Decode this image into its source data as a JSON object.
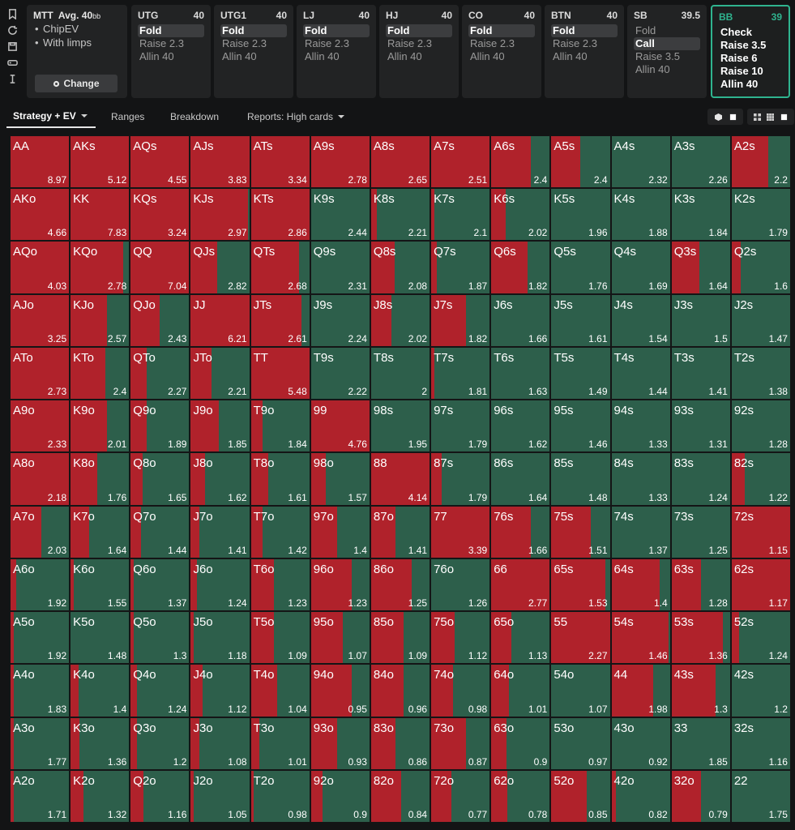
{
  "header": {
    "format": "MTT",
    "avg_label": "Avg. 40",
    "avg_unit": "bb",
    "options": [
      "ChipEV",
      "With limps"
    ],
    "change_label": "Change"
  },
  "positions": [
    {
      "name": "UTG",
      "stack": "40",
      "actions": [
        "Fold",
        "Raise 2.3",
        "Allin 40"
      ],
      "selected": 0
    },
    {
      "name": "UTG1",
      "stack": "40",
      "actions": [
        "Fold",
        "Raise 2.3",
        "Allin 40"
      ],
      "selected": 0
    },
    {
      "name": "LJ",
      "stack": "40",
      "actions": [
        "Fold",
        "Raise 2.3",
        "Allin 40"
      ],
      "selected": 0
    },
    {
      "name": "HJ",
      "stack": "40",
      "actions": [
        "Fold",
        "Raise 2.3",
        "Allin 40"
      ],
      "selected": 0
    },
    {
      "name": "CO",
      "stack": "40",
      "actions": [
        "Fold",
        "Raise 2.3",
        "Allin 40"
      ],
      "selected": 0
    },
    {
      "name": "BTN",
      "stack": "40",
      "actions": [
        "Fold",
        "Raise 2.3",
        "Allin 40"
      ],
      "selected": 0
    },
    {
      "name": "SB",
      "stack": "39.5",
      "actions": [
        "Fold",
        "Call",
        "Raise 3.5",
        "Allin 40"
      ],
      "selected": 1
    },
    {
      "name": "BB",
      "stack": "39",
      "actions": [
        "Check",
        "Raise 3.5",
        "Raise 6",
        "Raise 10",
        "Allin 40"
      ],
      "selected": -1,
      "active": true
    }
  ],
  "tabs": [
    {
      "label": "Strategy + EV",
      "active": true,
      "dropdown": true
    },
    {
      "label": "Ranges",
      "active": false,
      "dropdown": false
    },
    {
      "label": "Breakdown",
      "active": false,
      "dropdown": false
    },
    {
      "label": "Reports: High cards",
      "active": false,
      "dropdown": true
    }
  ],
  "colors": {
    "raise": "#b0222b",
    "check": "#2d5f4b",
    "accent": "#2fb48f"
  },
  "grid": {
    "hands": [
      [
        "AA",
        "AKs",
        "AQs",
        "AJs",
        "ATs",
        "A9s",
        "A8s",
        "A7s",
        "A6s",
        "A5s",
        "A4s",
        "A3s",
        "A2s"
      ],
      [
        "AKo",
        "KK",
        "KQs",
        "KJs",
        "KTs",
        "K9s",
        "K8s",
        "K7s",
        "K6s",
        "K5s",
        "K4s",
        "K3s",
        "K2s"
      ],
      [
        "AQo",
        "KQo",
        "QQ",
        "QJs",
        "QTs",
        "Q9s",
        "Q8s",
        "Q7s",
        "Q6s",
        "Q5s",
        "Q4s",
        "Q3s",
        "Q2s"
      ],
      [
        "AJo",
        "KJo",
        "QJo",
        "JJ",
        "JTs",
        "J9s",
        "J8s",
        "J7s",
        "J6s",
        "J5s",
        "J4s",
        "J3s",
        "J2s"
      ],
      [
        "ATo",
        "KTo",
        "QTo",
        "JTo",
        "TT",
        "T9s",
        "T8s",
        "T7s",
        "T6s",
        "T5s",
        "T4s",
        "T3s",
        "T2s"
      ],
      [
        "A9o",
        "K9o",
        "Q9o",
        "J9o",
        "T9o",
        "99",
        "98s",
        "97s",
        "96s",
        "95s",
        "94s",
        "93s",
        "92s"
      ],
      [
        "A8o",
        "K8o",
        "Q8o",
        "J8o",
        "T8o",
        "98o",
        "88",
        "87s",
        "86s",
        "85s",
        "84s",
        "83s",
        "82s"
      ],
      [
        "A7o",
        "K7o",
        "Q7o",
        "J7o",
        "T7o",
        "97o",
        "87o",
        "77",
        "76s",
        "75s",
        "74s",
        "73s",
        "72s"
      ],
      [
        "A6o",
        "K6o",
        "Q6o",
        "J6o",
        "T6o",
        "96o",
        "86o",
        "76o",
        "66",
        "65s",
        "64s",
        "63s",
        "62s"
      ],
      [
        "A5o",
        "K5o",
        "Q5o",
        "J5o",
        "T5o",
        "95o",
        "85o",
        "75o",
        "65o",
        "55",
        "54s",
        "53s",
        "52s"
      ],
      [
        "A4o",
        "K4o",
        "Q4o",
        "J4o",
        "T4o",
        "94o",
        "84o",
        "74o",
        "64o",
        "54o",
        "44",
        "43s",
        "42s"
      ],
      [
        "A3o",
        "K3o",
        "Q3o",
        "J3o",
        "T3o",
        "93o",
        "83o",
        "73o",
        "63o",
        "53o",
        "43o",
        "33",
        "32s"
      ],
      [
        "A2o",
        "K2o",
        "Q2o",
        "J2o",
        "T2o",
        "92o",
        "82o",
        "72o",
        "62o",
        "52o",
        "42o",
        "32o",
        "22"
      ]
    ],
    "ev": [
      [
        "8.97",
        "5.12",
        "4.55",
        "3.83",
        "3.34",
        "2.78",
        "2.65",
        "2.51",
        "2.4",
        "2.4",
        "2.32",
        "2.26",
        "2.2"
      ],
      [
        "4.66",
        "7.83",
        "3.24",
        "2.97",
        "2.86",
        "2.44",
        "2.21",
        "2.1",
        "2.02",
        "1.96",
        "1.88",
        "1.84",
        "1.79"
      ],
      [
        "4.03",
        "2.78",
        "7.04",
        "2.82",
        "2.68",
        "2.31",
        "2.08",
        "1.87",
        "1.82",
        "1.76",
        "1.69",
        "1.64",
        "1.6"
      ],
      [
        "3.25",
        "2.57",
        "2.43",
        "6.21",
        "2.61",
        "2.24",
        "2.02",
        "1.82",
        "1.66",
        "1.61",
        "1.54",
        "1.5",
        "1.47"
      ],
      [
        "2.73",
        "2.4",
        "2.27",
        "2.21",
        "5.48",
        "2.22",
        "2",
        "1.81",
        "1.63",
        "1.49",
        "1.44",
        "1.41",
        "1.38"
      ],
      [
        "2.33",
        "2.01",
        "1.89",
        "1.85",
        "1.84",
        "4.76",
        "1.95",
        "1.79",
        "1.62",
        "1.46",
        "1.33",
        "1.31",
        "1.28"
      ],
      [
        "2.18",
        "1.76",
        "1.65",
        "1.62",
        "1.61",
        "1.57",
        "4.14",
        "1.79",
        "1.64",
        "1.48",
        "1.33",
        "1.24",
        "1.22"
      ],
      [
        "2.03",
        "1.64",
        "1.44",
        "1.41",
        "1.42",
        "1.4",
        "1.41",
        "3.39",
        "1.66",
        "1.51",
        "1.37",
        "1.25",
        "1.15"
      ],
      [
        "1.92",
        "1.55",
        "1.37",
        "1.24",
        "1.23",
        "1.23",
        "1.25",
        "1.26",
        "2.77",
        "1.53",
        "1.4",
        "1.28",
        "1.17"
      ],
      [
        "1.92",
        "1.48",
        "1.3",
        "1.18",
        "1.09",
        "1.07",
        "1.09",
        "1.12",
        "1.13",
        "2.27",
        "1.46",
        "1.36",
        "1.24"
      ],
      [
        "1.83",
        "1.4",
        "1.24",
        "1.12",
        "1.04",
        "0.95",
        "0.96",
        "0.98",
        "1.01",
        "1.07",
        "1.98",
        "1.3",
        "1.2"
      ],
      [
        "1.77",
        "1.36",
        "1.2",
        "1.08",
        "1.01",
        "0.93",
        "0.86",
        "0.87",
        "0.9",
        "0.97",
        "0.92",
        "1.85",
        "1.16"
      ],
      [
        "1.71",
        "1.32",
        "1.16",
        "1.05",
        "0.98",
        "0.9",
        "0.84",
        "0.77",
        "0.78",
        "0.85",
        "0.82",
        "0.79",
        "1.75"
      ]
    ],
    "raise_freq": [
      [
        1,
        1,
        1,
        1,
        1,
        1,
        1,
        1,
        0.68,
        0.5,
        0,
        0,
        0.62
      ],
      [
        1,
        1,
        1,
        0.98,
        1,
        0,
        0.1,
        0.05,
        0.25,
        0,
        0,
        0,
        0
      ],
      [
        1,
        0.9,
        1,
        0.45,
        0.82,
        0,
        0.4,
        0.1,
        0.62,
        0,
        0,
        0.48,
        0.15
      ],
      [
        1,
        0.62,
        0.5,
        1,
        0.86,
        0,
        0.35,
        0.6,
        0,
        0,
        0,
        0,
        0
      ],
      [
        1,
        0.6,
        0.28,
        0.36,
        1,
        0,
        0,
        0.06,
        0,
        0,
        0,
        0,
        0
      ],
      [
        1,
        0.62,
        0.28,
        0.48,
        0.2,
        1,
        0,
        0,
        0,
        0,
        0,
        0,
        0
      ],
      [
        1,
        0.45,
        0.2,
        0.25,
        0.3,
        0.25,
        1,
        0.18,
        0,
        0,
        0,
        0,
        0.22
      ],
      [
        0.52,
        0.32,
        0.18,
        0.15,
        0.2,
        0.45,
        0.42,
        1,
        0.68,
        0.68,
        0,
        0,
        1
      ],
      [
        0.1,
        0.05,
        0.05,
        0.1,
        0.4,
        0.7,
        0.7,
        0,
        1,
        0.92,
        0.83,
        0.5,
        1
      ],
      [
        0.05,
        0,
        0.05,
        0.05,
        0.4,
        0.55,
        0.55,
        0.4,
        0.35,
        1,
        0.98,
        0.88,
        0.12
      ],
      [
        0.05,
        0.13,
        0.1,
        0.2,
        0.45,
        0.7,
        0.55,
        0.38,
        0.3,
        0,
        0.72,
        0.75,
        0
      ],
      [
        0.05,
        0.15,
        0.1,
        0.15,
        0.15,
        0.45,
        0.42,
        0.6,
        0.26,
        0,
        0,
        0,
        0
      ],
      [
        0.05,
        0.22,
        0.22,
        0.05,
        0.05,
        0.2,
        0.52,
        0.35,
        0.28,
        0.6,
        0.08,
        0.5,
        0
      ]
    ]
  }
}
